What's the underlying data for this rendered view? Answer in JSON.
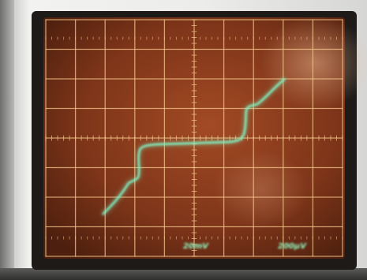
{
  "scope": {
    "label_left": "20mV",
    "label_right": "200μV",
    "colors": {
      "screen": "#8a3d20",
      "grid": "#f4c58a",
      "trace": "#7ff5c5",
      "label": "#8fffc8"
    }
  }
}
